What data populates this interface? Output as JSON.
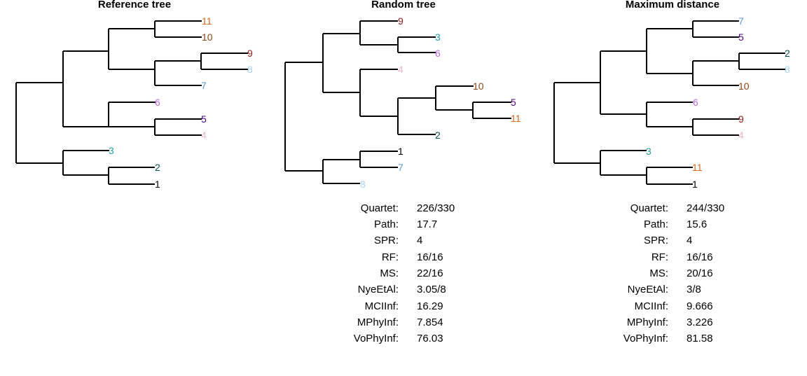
{
  "panels": [
    {
      "title": "Reference tree",
      "tips": [
        {
          "label": "11",
          "color": "#d2691e"
        },
        {
          "label": "10",
          "color": "#8b4513"
        },
        {
          "label": "9",
          "color": "#8b1a1a"
        },
        {
          "label": "8",
          "color": "#a8d4f2"
        },
        {
          "label": "7",
          "color": "#5a9bd8"
        },
        {
          "label": "6",
          "color": "#b36be0"
        },
        {
          "label": "5",
          "color": "#4b0082"
        },
        {
          "label": "4",
          "color": "#f0b6c8"
        },
        {
          "label": "3",
          "color": "#1f9e9e"
        },
        {
          "label": "2",
          "color": "#0b4f4f"
        },
        {
          "label": "1",
          "color": "#000000"
        }
      ],
      "stats": []
    },
    {
      "title": "Random tree",
      "tips": [
        {
          "label": "9",
          "color": "#8b1a1a"
        },
        {
          "label": "3",
          "color": "#1f9e9e"
        },
        {
          "label": "6",
          "color": "#b36be0"
        },
        {
          "label": "4",
          "color": "#f0b6c8"
        },
        {
          "label": "10",
          "color": "#8b4513"
        },
        {
          "label": "5",
          "color": "#4b0082"
        },
        {
          "label": "11",
          "color": "#d2691e"
        },
        {
          "label": "2",
          "color": "#0b4f4f"
        },
        {
          "label": "1",
          "color": "#000000"
        },
        {
          "label": "7",
          "color": "#5a9bd8"
        },
        {
          "label": "8",
          "color": "#a8d4f2"
        }
      ],
      "stats": [
        {
          "label": "Quartet:",
          "value": "226/330"
        },
        {
          "label": "Path:",
          "value": "17.7"
        },
        {
          "label": "SPR:",
          "value": "4"
        },
        {
          "label": "RF:",
          "value": "16/16"
        },
        {
          "label": "MS:",
          "value": "22/16"
        },
        {
          "label": "NyeEtAl:",
          "value": "3.05/8"
        },
        {
          "label": "MCIInf:",
          "value": "16.29"
        },
        {
          "label": "MPhyInf:",
          "value": "7.854"
        },
        {
          "label": "VoPhyInf:",
          "value": "76.03"
        }
      ]
    },
    {
      "title": "Maximum distance",
      "tips": [
        {
          "label": "7",
          "color": "#5a9bd8"
        },
        {
          "label": "5",
          "color": "#4b0082"
        },
        {
          "label": "2",
          "color": "#0b4f4f"
        },
        {
          "label": "8",
          "color": "#a8d4f2"
        },
        {
          "label": "10",
          "color": "#8b4513"
        },
        {
          "label": "6",
          "color": "#b36be0"
        },
        {
          "label": "9",
          "color": "#8b1a1a"
        },
        {
          "label": "4",
          "color": "#f0b6c8"
        },
        {
          "label": "3",
          "color": "#1f9e9e"
        },
        {
          "label": "11",
          "color": "#d2691e"
        },
        {
          "label": "1",
          "color": "#000000"
        }
      ],
      "stats": [
        {
          "label": "Quartet:",
          "value": "244/330"
        },
        {
          "label": "Path:",
          "value": "15.6"
        },
        {
          "label": "SPR:",
          "value": "4"
        },
        {
          "label": "RF:",
          "value": "16/16"
        },
        {
          "label": "MS:",
          "value": "20/16"
        },
        {
          "label": "NyeEtAl:",
          "value": "3/8"
        },
        {
          "label": "MCIInf:",
          "value": "9.666"
        },
        {
          "label": "MPhyInf:",
          "value": "3.226"
        },
        {
          "label": "VoPhyInf:",
          "value": "81.58"
        }
      ]
    }
  ]
}
